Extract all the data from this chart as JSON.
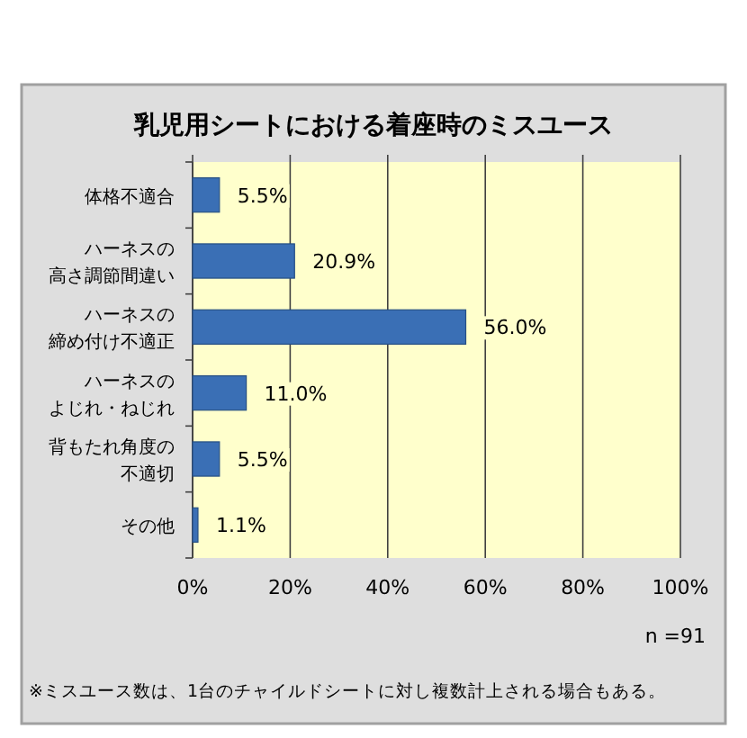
{
  "chart_data": {
    "type": "bar",
    "orientation": "horizontal",
    "title": "乳児用シートにおける着座時のミスユース",
    "categories": [
      "体格不適合",
      "ハーネスの高さ調節間違い",
      "ハーネスの締め付け不適正",
      "ハーネスのよじれ・ねじれ",
      "背もたれ角度の不適切",
      "その他"
    ],
    "values": [
      5.5,
      20.9,
      56.0,
      11.0,
      5.5,
      1.1
    ],
    "value_labels": [
      "5.5%",
      "20.9%",
      "56.0%",
      "11.0%",
      "5.5%",
      "1.1%"
    ],
    "color": "#3a6fb5",
    "xlim": [
      0,
      100
    ],
    "xticks": [
      {
        "value": 0,
        "label": "0%"
      },
      {
        "value": 20,
        "label": "20%"
      },
      {
        "value": 40,
        "label": "40%"
      },
      {
        "value": 60,
        "label": "60%"
      },
      {
        "value": 80,
        "label": "80%"
      },
      {
        "value": 100,
        "label": "100%"
      }
    ],
    "grid": "x",
    "annotations": [
      "n =91",
      "※ミスユース数は、1台のチャイルドシートに対し複数計上される場合もある。"
    ]
  }
}
